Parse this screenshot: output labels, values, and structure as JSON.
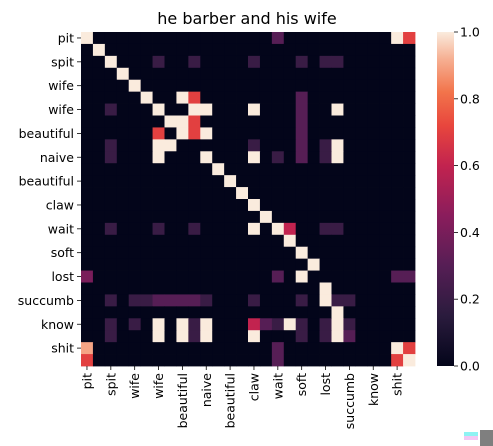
{
  "chart_data": {
    "type": "heatmap",
    "title": "he barber and his wife",
    "xlabel": "",
    "ylabel": "",
    "y_tick_labels": [
      "pit",
      "spit",
      "wife",
      "wife",
      "beautiful",
      "naive",
      "beautiful",
      "claw",
      "wait",
      "soft",
      "lost",
      "succumb",
      "know",
      "shit"
    ],
    "x_tick_labels": [
      "pit",
      "spit",
      "wife",
      "wife",
      "beautiful",
      "naive",
      "beautiful",
      "claw",
      "wait",
      "soft",
      "lost",
      "succumb",
      "know",
      "shit"
    ],
    "tokens": [
      "pit",
      "",
      "spit",
      "",
      "wife",
      "",
      "wife",
      "",
      "beautiful",
      "",
      "naive",
      "",
      "beautiful",
      "",
      "claw",
      "",
      "wait",
      "",
      "soft",
      "",
      "lost",
      "",
      "succumb",
      "",
      "know",
      "",
      "shit",
      ""
    ],
    "colorbar": {
      "min": 0.0,
      "max": 1.0,
      "ticks": [
        "0.0",
        "0.2",
        "0.4",
        "0.6",
        "0.8",
        "1.0"
      ]
    },
    "values": [
      [
        1.0,
        0,
        0,
        0,
        0,
        0,
        0,
        0,
        0,
        0,
        0,
        0,
        0,
        0,
        0,
        0,
        0.3,
        0,
        0,
        0,
        0,
        0,
        0,
        0,
        0,
        0,
        1.0,
        0.7
      ],
      [
        0,
        1.0,
        0,
        0,
        0,
        0,
        0,
        0,
        0,
        0,
        0,
        0,
        0,
        0,
        0,
        0,
        0,
        0,
        0,
        0,
        0,
        0,
        0,
        0,
        0,
        0,
        0,
        0
      ],
      [
        0,
        0,
        1.0,
        0,
        0,
        0,
        0.2,
        0,
        0,
        0.2,
        0,
        0,
        0,
        0,
        0.2,
        0,
        0,
        0,
        0.2,
        0,
        0.2,
        0.2,
        0,
        0,
        0,
        0,
        0,
        0
      ],
      [
        0,
        0,
        0,
        1.0,
        0,
        0,
        0,
        0,
        0,
        0,
        0,
        0,
        0,
        0,
        0,
        0,
        0,
        0,
        0,
        0,
        0,
        0,
        0,
        0,
        0,
        0,
        0,
        0
      ],
      [
        0,
        0,
        0,
        0,
        1.0,
        0,
        0,
        0,
        0,
        0,
        0,
        0,
        0,
        0,
        0,
        0,
        0,
        0,
        0,
        0,
        0,
        0,
        0,
        0,
        0,
        0,
        0,
        0
      ],
      [
        0,
        0,
        0,
        0,
        0,
        1.0,
        0,
        0,
        1.0,
        0.7,
        0,
        0,
        0,
        0,
        0,
        0,
        0,
        0,
        0.3,
        0,
        0,
        0,
        0,
        0,
        0,
        0,
        0,
        0
      ],
      [
        0,
        0,
        0.2,
        0,
        0,
        0,
        1.0,
        0,
        0,
        1.0,
        1.0,
        0,
        0,
        0,
        1.0,
        0,
        0,
        0,
        0.3,
        0,
        0,
        1.0,
        0,
        0,
        0,
        0,
        0,
        0
      ],
      [
        0,
        0,
        0,
        0,
        0,
        0,
        0,
        1.0,
        1.0,
        0.7,
        0,
        0,
        0,
        0,
        0,
        0,
        0,
        0,
        0.3,
        0,
        0,
        0,
        0,
        0,
        0,
        0,
        0,
        0
      ],
      [
        0,
        0,
        0,
        0,
        0,
        0,
        0.7,
        0,
        1.0,
        0.7,
        1.0,
        0,
        0,
        0,
        0,
        0,
        0,
        0,
        0.3,
        0,
        0,
        0,
        0,
        0,
        0,
        0,
        0,
        0
      ],
      [
        0,
        0,
        0.2,
        0,
        0,
        0,
        1.0,
        1.0,
        0,
        0,
        0,
        0,
        0,
        0,
        0.2,
        0,
        0,
        0,
        0.3,
        0,
        0.2,
        1.0,
        0,
        0,
        0,
        0,
        0,
        0
      ],
      [
        0,
        0,
        0.2,
        0,
        0,
        0,
        1.0,
        0,
        0,
        0,
        1.0,
        0,
        0,
        0,
        1.0,
        0,
        0.2,
        0,
        0.3,
        0,
        0.2,
        1.0,
        0,
        0,
        0,
        0,
        0,
        0
      ],
      [
        0,
        0,
        0,
        0,
        0,
        0,
        0,
        0,
        0,
        0,
        0,
        1.0,
        0,
        0,
        0,
        0,
        0,
        0,
        0,
        0,
        0,
        0,
        0,
        0,
        0,
        0,
        0,
        0
      ],
      [
        0,
        0,
        0,
        0,
        0,
        0,
        0,
        0,
        0,
        0,
        0,
        0,
        1.0,
        0,
        0,
        0,
        0,
        0,
        0,
        0,
        0,
        0,
        0,
        0,
        0,
        0,
        0,
        0
      ],
      [
        0,
        0,
        0,
        0,
        0,
        0,
        0,
        0,
        0,
        0,
        0,
        0,
        0,
        1.0,
        0,
        0,
        0,
        0,
        0,
        0,
        0,
        0,
        0,
        0,
        0,
        0,
        0,
        0
      ],
      [
        0,
        0,
        0,
        0,
        0,
        0,
        0,
        0,
        0,
        0,
        0,
        0,
        0,
        0,
        1.0,
        0,
        0,
        0,
        0,
        0,
        0,
        0,
        0,
        0,
        0,
        0,
        0,
        0
      ],
      [
        0,
        0,
        0,
        0,
        0,
        0,
        0,
        0,
        0,
        0,
        0,
        0,
        0,
        0,
        0,
        1.0,
        0,
        0,
        0,
        0,
        0,
        0,
        0,
        0,
        0,
        0,
        0,
        0
      ],
      [
        0,
        0,
        0.2,
        0,
        0,
        0,
        0.2,
        0,
        0,
        0.2,
        0,
        0,
        0,
        0,
        1.0,
        0,
        1.0,
        0.6,
        0,
        0,
        0.2,
        0.2,
        0,
        0,
        0,
        0,
        0,
        0
      ],
      [
        0,
        0,
        0,
        0,
        0,
        0,
        0,
        0,
        0,
        0,
        0,
        0,
        0,
        0,
        0,
        0,
        0,
        1.0,
        0,
        0,
        0,
        0,
        0,
        0,
        0,
        0,
        0,
        0
      ],
      [
        0,
        0,
        0,
        0,
        0,
        0,
        0,
        0,
        0,
        0,
        0,
        0,
        0,
        0,
        0,
        0,
        0,
        0,
        1.0,
        0,
        0,
        0,
        0,
        0,
        0,
        0,
        0,
        0
      ],
      [
        0,
        0,
        0,
        0,
        0,
        0,
        0,
        0,
        0,
        0,
        0,
        0,
        0,
        0,
        0,
        0,
        0,
        0,
        0,
        1.0,
        0,
        0,
        0,
        0,
        0,
        0,
        0,
        0
      ],
      [
        0.4,
        0,
        0,
        0,
        0,
        0,
        0,
        0,
        0,
        0,
        0,
        0,
        0,
        0,
        0,
        0,
        0.3,
        0,
        1.0,
        0,
        0,
        0,
        0,
        0,
        0,
        0,
        0.3,
        0.3
      ],
      [
        0,
        0,
        0,
        0,
        0,
        0,
        0,
        0,
        0,
        0,
        0,
        0,
        0,
        0,
        0,
        0,
        0,
        0,
        0,
        0,
        1.0,
        0,
        0,
        0,
        0,
        0,
        0,
        0
      ],
      [
        0,
        0,
        0.2,
        0,
        0.2,
        0.2,
        0.3,
        0.3,
        0.3,
        0.3,
        0.2,
        0,
        0,
        0,
        0.2,
        0,
        0,
        0,
        0.2,
        0,
        1.0,
        0.2,
        0.2,
        0,
        0,
        0,
        0,
        0
      ],
      [
        0,
        0,
        0,
        0,
        0,
        0,
        0,
        0,
        0,
        0,
        0,
        0,
        0,
        0,
        0,
        0,
        0,
        0,
        0,
        0,
        0,
        1.0,
        0,
        0,
        0,
        0,
        0,
        0
      ],
      [
        0,
        0,
        0.2,
        0,
        0.2,
        0,
        1.0,
        0,
        1.0,
        0.2,
        1.0,
        0,
        0,
        0,
        0.6,
        0.3,
        0.2,
        1.0,
        0.2,
        0,
        0.2,
        1.0,
        0.2,
        0,
        0,
        0,
        0,
        0
      ],
      [
        0,
        0,
        0.2,
        0,
        0,
        0,
        1.0,
        0,
        1.0,
        0.2,
        1.0,
        0,
        0,
        0,
        1.0,
        0,
        0,
        0,
        0.2,
        0,
        0.2,
        1.0,
        0.3,
        0,
        0,
        0,
        0,
        0
      ],
      [
        0.9,
        0,
        0,
        0,
        0,
        0,
        0,
        0,
        0,
        0,
        0,
        0,
        0,
        0,
        0,
        0,
        0.3,
        0,
        0,
        0,
        0,
        0,
        0,
        0,
        0,
        0,
        1.0,
        0.7
      ],
      [
        0.7,
        0,
        0,
        0,
        0,
        0,
        0,
        0,
        0,
        0,
        0,
        0,
        0,
        0,
        0,
        0,
        0.3,
        0,
        0,
        0,
        0,
        0,
        0,
        0,
        0,
        0,
        0.7,
        1.0
      ]
    ]
  }
}
